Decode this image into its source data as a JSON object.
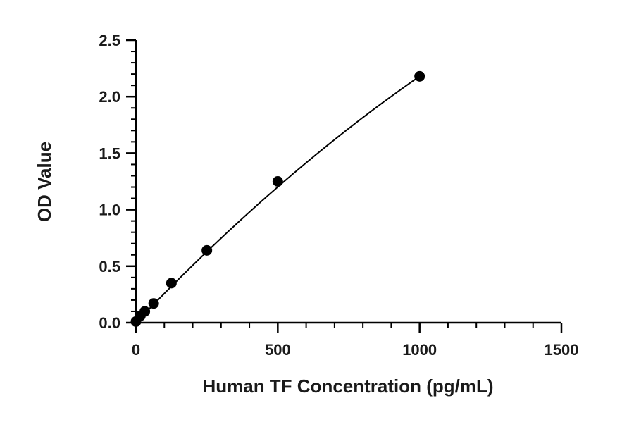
{
  "chart_data": {
    "type": "scatter",
    "title": "",
    "xlabel": "Human TF Concentration (pg/mL)",
    "ylabel": "OD Value",
    "xlim": [
      0,
      1500
    ],
    "ylim": [
      0,
      2.5
    ],
    "x_ticks": [
      0,
      500,
      1000,
      1500
    ],
    "x_tick_labels": [
      "0",
      "500",
      "1000",
      "1500"
    ],
    "y_ticks": [
      0,
      0.5,
      1.0,
      1.5,
      2.0,
      2.5
    ],
    "y_tick_labels": [
      "0.0",
      "0.5",
      "1.0",
      "1.5",
      "2.0",
      "2.5"
    ],
    "x_minor_step": 100,
    "y_minor_step": 0.1,
    "grid": false,
    "legend": "none",
    "series": [
      {
        "x": [
          0,
          15.6,
          31.25,
          62.5,
          125,
          250,
          500,
          1000
        ],
        "y": [
          0.01,
          0.06,
          0.1,
          0.17,
          0.35,
          0.64,
          1.25,
          2.18
        ]
      }
    ],
    "fit_curve": {
      "type": "polynomial",
      "coefficients": [
        0.0,
        0.002625,
        -4.45e-07
      ]
    },
    "colors": {
      "marker": "#000000",
      "curve": "#000000",
      "axis": "#000000"
    }
  }
}
